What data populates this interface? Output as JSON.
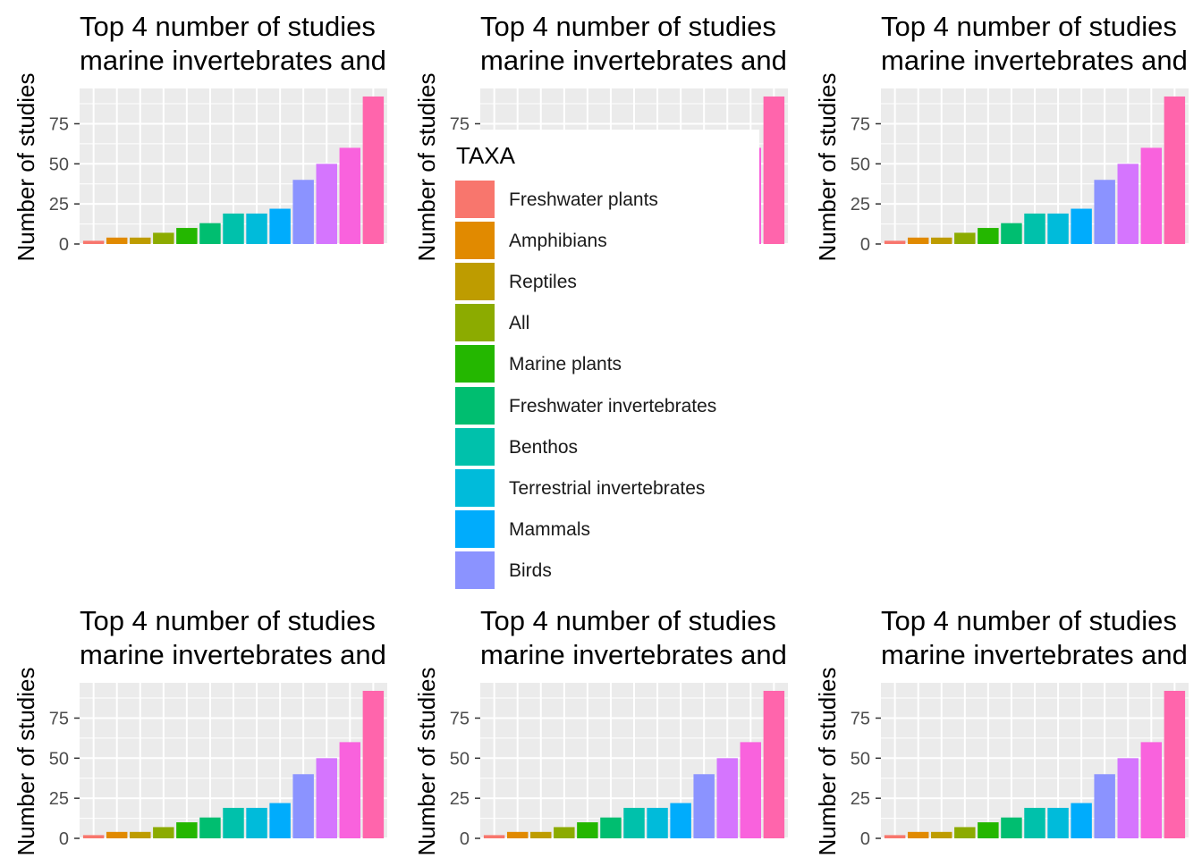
{
  "chart_data": {
    "type": "bar",
    "panel_count": 6,
    "title_lines": [
      "Top 4 number of studies",
      "marine invertebrates and"
    ],
    "ylabel": "Number of studies",
    "xlabel": "",
    "ylim": [
      0,
      97
    ],
    "y_ticks": [
      0,
      25,
      50,
      75
    ],
    "grid": true,
    "legend_title": "TAXA",
    "legend_position": "overlapping center panel",
    "categories": [
      "Freshwater plants",
      "Amphibians",
      "Reptiles",
      "All",
      "Marine plants",
      "Freshwater invertebrates",
      "Benthos",
      "Terrestrial invertebrates",
      "Mammals",
      "Birds",
      "",
      "",
      ""
    ],
    "values": [
      2,
      4,
      4,
      7,
      10,
      13,
      19,
      19,
      22,
      40,
      50,
      60,
      92
    ],
    "colors": [
      "#F8766D",
      "#E18A00",
      "#BE9C00",
      "#8CAB00",
      "#24B700",
      "#00BE70",
      "#00C1AB",
      "#00BBDA",
      "#00ACFC",
      "#8B93FF",
      "#D575FE",
      "#F962DD",
      "#FF65AC"
    ]
  }
}
